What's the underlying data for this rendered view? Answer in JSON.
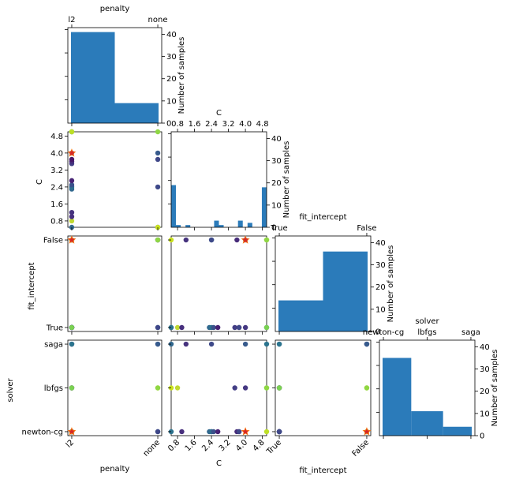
{
  "chart_data": {
    "type": "scatter-matrix",
    "params": [
      "penalty",
      "C",
      "fit_intercept",
      "solver"
    ],
    "labels": {
      "penalty": "penalty",
      "C": "C",
      "fit_intercept": "fit_intercept",
      "solver": "solver",
      "count": "Number of samples"
    },
    "categories": {
      "penalty": [
        "l2",
        "none"
      ],
      "fit_intercept": [
        "True",
        "False"
      ],
      "solver": [
        "newton-cg",
        "lbfgs",
        "saga"
      ]
    },
    "c_ticks": [
      "0.8",
      "1.6",
      "2.4",
      "3.2",
      "4.0",
      "4.8"
    ],
    "count_ticks": [
      "0",
      "10",
      "20",
      "30",
      "40"
    ],
    "count_max": 43,
    "colors": {
      "bar": "#2b7bba",
      "best": "#d62728",
      "best_edge": "#ff7f0e"
    },
    "hist": {
      "penalty": [
        41,
        9
      ],
      "C": {
        "range": [
          0.5,
          5.0
        ],
        "bins": 20,
        "counts": [
          19,
          1,
          0,
          1,
          0,
          0,
          0,
          0,
          0,
          3,
          1,
          0,
          0,
          0,
          3,
          0,
          2,
          0,
          0,
          18
        ]
      },
      "fit_intercept": [
        14,
        36
      ],
      "solver": [
        35,
        11,
        4
      ]
    },
    "trials": [
      {
        "penalty": "l2",
        "C": 0.5,
        "fit_intercept": "True",
        "solver": "saga",
        "color": "#31688e"
      },
      {
        "penalty": "l2",
        "C": 0.8,
        "fit_intercept": "True",
        "solver": "lbfgs",
        "color": "#c0d930"
      },
      {
        "penalty": "l2",
        "C": 1.0,
        "fit_intercept": "True",
        "solver": "newton-cg",
        "color": "#472f7d"
      },
      {
        "penalty": "l2",
        "C": 1.2,
        "fit_intercept": "False",
        "solver": "saga",
        "color": "#46337e"
      },
      {
        "penalty": "l2",
        "C": 2.3,
        "fit_intercept": "True",
        "solver": "newton-cg",
        "color": "#31688e"
      },
      {
        "penalty": "l2",
        "C": 2.4,
        "fit_intercept": "True",
        "solver": "newton-cg",
        "color": "#2c728e"
      },
      {
        "penalty": "l2",
        "C": 2.4,
        "fit_intercept": "False",
        "solver": "newton-cg",
        "color": "#2e6f8e"
      },
      {
        "penalty": "l2",
        "C": 2.5,
        "fit_intercept": "True",
        "solver": "newton-cg",
        "color": "#3b518b"
      },
      {
        "penalty": "l2",
        "C": 2.7,
        "fit_intercept": "True",
        "solver": "newton-cg",
        "color": "#482374"
      },
      {
        "penalty": "l2",
        "C": 3.5,
        "fit_intercept": "True",
        "solver": "lbfgs",
        "color": "#433e85"
      },
      {
        "penalty": "l2",
        "C": 3.6,
        "fit_intercept": "False",
        "solver": "newton-cg",
        "color": "#472c7a"
      },
      {
        "penalty": "l2",
        "C": 3.7,
        "fit_intercept": "True",
        "solver": "newton-cg",
        "color": "#481668"
      },
      {
        "penalty": "l2",
        "C": 4.0,
        "fit_intercept": "True",
        "solver": "lbfgs",
        "color": "#453882"
      },
      {
        "penalty": "l2",
        "C": 5.0,
        "fit_intercept": "True",
        "solver": "saga",
        "color": "#2b748e"
      },
      {
        "penalty": "l2",
        "C": 5.0,
        "fit_intercept": "True",
        "solver": "lbfgs",
        "color": "#7ad151"
      },
      {
        "penalty": "l2",
        "C": 5.0,
        "fit_intercept": "False",
        "solver": "newton-cg",
        "color": "#bddf26"
      },
      {
        "penalty": "none",
        "C": 0.5,
        "fit_intercept": "True",
        "solver": "newton-cg",
        "color": "#2c728e"
      },
      {
        "penalty": "none",
        "C": 0.5,
        "fit_intercept": "False",
        "solver": "lbfgs",
        "color": "#cae11f"
      },
      {
        "penalty": "none",
        "C": 2.4,
        "fit_intercept": "False",
        "solver": "saga",
        "color": "#3e4989"
      },
      {
        "penalty": "none",
        "C": 3.7,
        "fit_intercept": "True",
        "solver": "newton-cg",
        "color": "#3f4788"
      },
      {
        "penalty": "none",
        "C": 4.0,
        "fit_intercept": "False",
        "solver": "saga",
        "color": "#375b8d"
      },
      {
        "penalty": "none",
        "C": 5.0,
        "fit_intercept": "False",
        "solver": "lbfgs",
        "color": "#8fd744"
      },
      {
        "penalty": "l2",
        "C": 4.0,
        "fit_intercept": "False",
        "solver": "newton-cg",
        "color": "#d62728",
        "best": true
      }
    ]
  }
}
